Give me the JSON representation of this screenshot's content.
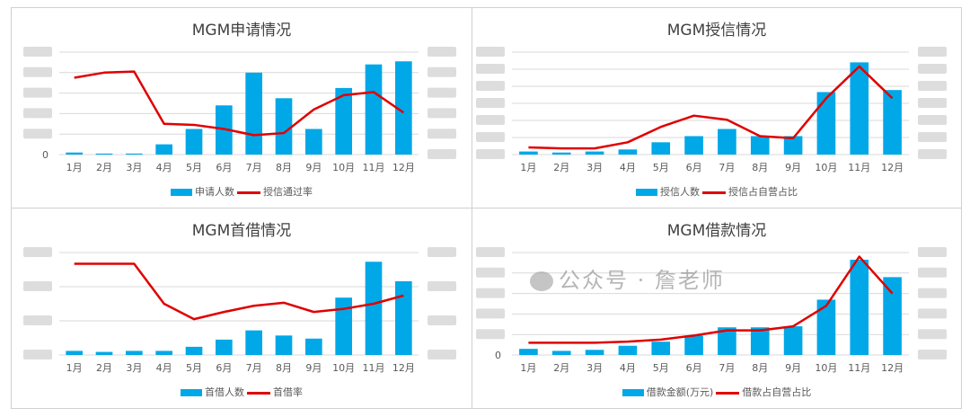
{
  "colors": {
    "bar": "#00a8e8",
    "line": "#e00000",
    "grid": "#d9d9d9"
  },
  "watermark": "公众号 · 詹老师",
  "chart_data": [
    {
      "type": "bar+line",
      "title": "MGM申请情况",
      "categories": [
        "1月",
        "2月",
        "3月",
        "4月",
        "5月",
        "6月",
        "7月",
        "8月",
        "9月",
        "10月",
        "11月",
        "12月"
      ],
      "ylim": [
        0,
        100
      ],
      "y_tick_shown": "0",
      "gridlines": 5,
      "legend": "bottom",
      "series": [
        {
          "name": "申请人数",
          "type": "bar",
          "axis": "left",
          "values": [
            2,
            1,
            1,
            10,
            25,
            48,
            80,
            55,
            25,
            65,
            88,
            91
          ]
        },
        {
          "name": "授信通过率",
          "type": "line",
          "axis": "right",
          "values": [
            75,
            80,
            81,
            30,
            29,
            25,
            19,
            21,
            44,
            58,
            61,
            41
          ]
        }
      ]
    },
    {
      "type": "bar+line",
      "title": "MGM授信情况",
      "categories": [
        "1月",
        "2月",
        "3月",
        "4月",
        "5月",
        "6月",
        "7月",
        "8月",
        "9月",
        "10月",
        "11月",
        "12月"
      ],
      "ylim": [
        0,
        100
      ],
      "y_tick_shown": "",
      "gridlines": 6,
      "legend": "bottom",
      "series": [
        {
          "name": "授信人数",
          "type": "bar",
          "axis": "left",
          "values": [
            3,
            2,
            3,
            5,
            12,
            18,
            25,
            18,
            18,
            61,
            90,
            63
          ]
        },
        {
          "name": "授信占自营占比",
          "type": "line",
          "axis": "right",
          "values": [
            7,
            6,
            6,
            12,
            27,
            38,
            34,
            18,
            16,
            55,
            86,
            55
          ]
        }
      ]
    },
    {
      "type": "bar+line",
      "title": "MGM首借情况",
      "categories": [
        "1月",
        "2月",
        "3月",
        "4月",
        "5月",
        "6月",
        "7月",
        "8月",
        "9月",
        "10月",
        "11月",
        "12月"
      ],
      "ylim": [
        0,
        100
      ],
      "y_tick_shown": "",
      "gridlines": 3,
      "legend": "bottom",
      "series": [
        {
          "name": "首借人数",
          "type": "bar",
          "axis": "left",
          "values": [
            4,
            3,
            4,
            4,
            8,
            15,
            24,
            19,
            16,
            56,
            91,
            72
          ]
        },
        {
          "name": "首借率",
          "type": "line",
          "axis": "right",
          "values": [
            89,
            89,
            89,
            50,
            35,
            42,
            48,
            51,
            42,
            45,
            50,
            58
          ]
        }
      ]
    },
    {
      "type": "bar+line",
      "title": "MGM借款情况",
      "categories": [
        "1月",
        "2月",
        "3月",
        "4月",
        "5月",
        "6月",
        "7月",
        "8月",
        "9月",
        "10月",
        "11月",
        "12月"
      ],
      "ylim": [
        0,
        100
      ],
      "y_tick_shown": "0",
      "gridlines": 5,
      "legend": "bottom",
      "series": [
        {
          "name": "借款金额(万元)",
          "type": "bar",
          "axis": "left",
          "values": [
            6,
            4,
            5,
            9,
            13,
            19,
            27,
            27,
            28,
            54,
            93,
            76
          ]
        },
        {
          "name": "借款占自营占比",
          "type": "line",
          "axis": "right",
          "values": [
            12,
            12,
            12,
            13,
            15,
            19,
            24,
            24,
            28,
            48,
            96,
            60
          ]
        }
      ]
    }
  ]
}
